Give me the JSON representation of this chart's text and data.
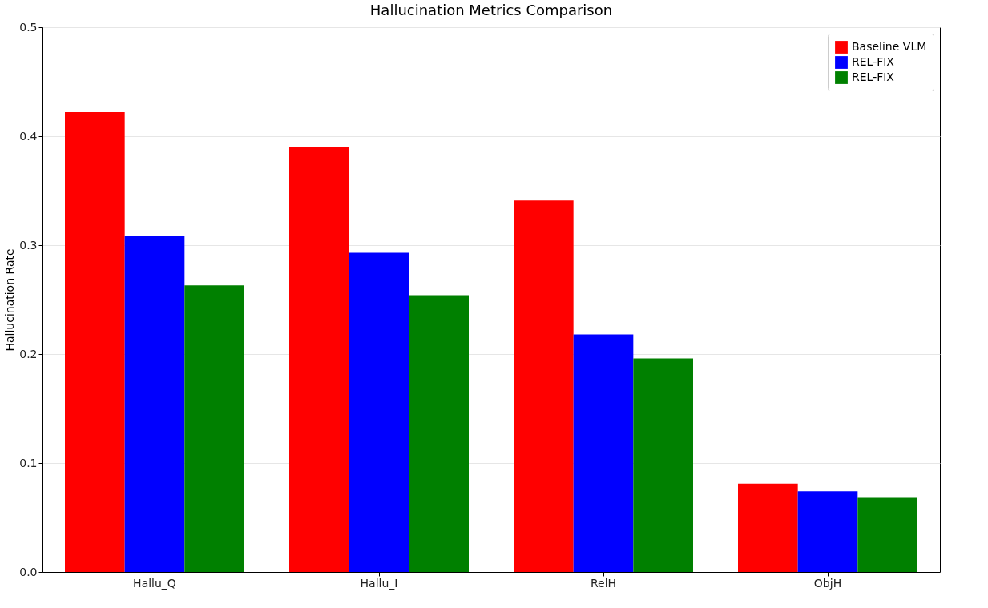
{
  "chart_data": {
    "type": "bar",
    "title": "Hallucination Metrics Comparison",
    "ylabel": "Hallucination Rate",
    "categories": [
      "Hallu_Q",
      "Hallu_I",
      "RelH",
      "ObjH"
    ],
    "series": [
      {
        "name": "Baseline VLM",
        "color": "#ff0000",
        "values": [
          0.422,
          0.39,
          0.341,
          0.081
        ]
      },
      {
        "name": "REL-FIX",
        "color": "#0000ff",
        "values": [
          0.308,
          0.293,
          0.218,
          0.074
        ]
      },
      {
        "name": "REL-FIX",
        "color": "#008000",
        "values": [
          0.263,
          0.254,
          0.196,
          0.068
        ]
      }
    ],
    "ylim": [
      0,
      0.5
    ],
    "yticks": [
      {
        "value": 0,
        "label": "0.0"
      },
      0.1,
      0.2,
      0.3,
      0.4,
      0.5
    ],
    "grid": "y",
    "legend": "top right"
  }
}
